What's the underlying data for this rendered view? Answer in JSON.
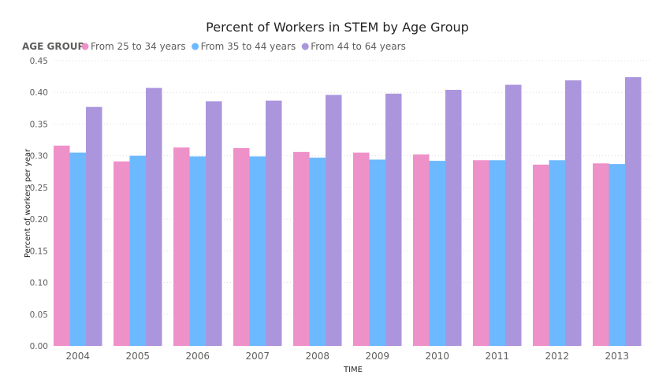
{
  "chart_data": {
    "type": "bar",
    "title": "Percent of Workers in STEM by Age Group",
    "xlabel": "TIME",
    "ylabel": "Percent of workers per year",
    "legend_title": "AGE GROUP",
    "legend_position": "top-left",
    "grid": true,
    "ylim": [
      0,
      0.45
    ],
    "yticks": [
      "0.00",
      "0.05",
      "0.10",
      "0.15",
      "0.20",
      "0.25",
      "0.30",
      "0.35",
      "0.40",
      "0.45"
    ],
    "categories": [
      "2004",
      "2005",
      "2006",
      "2007",
      "2008",
      "2009",
      "2010",
      "2011",
      "2012",
      "2013"
    ],
    "series": [
      {
        "name": "From 25 to 34 years",
        "color": "#ee91c9",
        "values": [
          0.316,
          0.291,
          0.313,
          0.312,
          0.306,
          0.305,
          0.302,
          0.293,
          0.286,
          0.288
        ]
      },
      {
        "name": "From 35 to 44 years",
        "color": "#6db9ff",
        "values": [
          0.305,
          0.3,
          0.299,
          0.299,
          0.297,
          0.294,
          0.292,
          0.293,
          0.293,
          0.287
        ]
      },
      {
        "name": "From 44 to 64 years",
        "color": "#ab96dd",
        "values": [
          0.377,
          0.407,
          0.386,
          0.387,
          0.396,
          0.398,
          0.404,
          0.412,
          0.419,
          0.424
        ]
      }
    ]
  }
}
